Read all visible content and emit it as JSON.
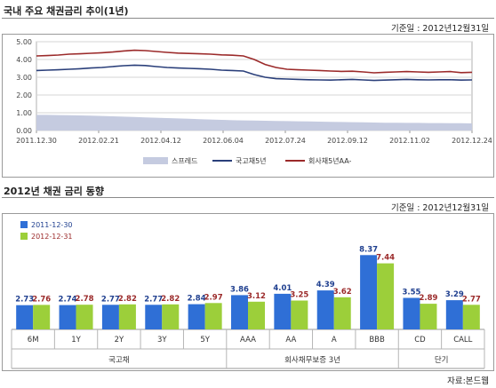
{
  "section1": {
    "title": "국내 주요 채권금리 추이(1년)",
    "as_of": "기준일 : 2012년12월31일"
  },
  "section2": {
    "title": "2012년 채권 금리 동향",
    "as_of": "기준일 : 2012년12월31일",
    "source": "자료:본드웹"
  },
  "chart_data": [
    {
      "type": "line",
      "title": "국내 주요 채권금리 추이(1년)",
      "x_tick_labels": [
        "2011.12.30",
        "2012.02.21",
        "2012.04.12",
        "2012.06.04",
        "2012.07.24",
        "2012.09.12",
        "2012.11.02",
        "2012.12.24"
      ],
      "y_tick_labels": [
        "0.00",
        "1.00",
        "2.00",
        "3.00",
        "4.00",
        "5.00"
      ],
      "ylim": [
        0,
        5
      ],
      "grid": true,
      "legend_position": "bottom",
      "series": [
        {
          "name": "스프레드",
          "kind": "area",
          "color": "#c5cbe0",
          "values": [
            0.88,
            0.88,
            0.87,
            0.86,
            0.85,
            0.84,
            0.82,
            0.8,
            0.78,
            0.76,
            0.74,
            0.72,
            0.7,
            0.68,
            0.66,
            0.64,
            0.62,
            0.6,
            0.58,
            0.57,
            0.56,
            0.55,
            0.54,
            0.53,
            0.52,
            0.51,
            0.5,
            0.49,
            0.48,
            0.47,
            0.46,
            0.45,
            0.44,
            0.44,
            0.43,
            0.43,
            0.42,
            0.42,
            0.41,
            0.41,
            0.4
          ]
        },
        {
          "name": "국고채5년",
          "kind": "line",
          "color": "#2a3f7a",
          "values": [
            3.38,
            3.4,
            3.42,
            3.45,
            3.48,
            3.52,
            3.55,
            3.6,
            3.65,
            3.68,
            3.66,
            3.6,
            3.55,
            3.52,
            3.5,
            3.48,
            3.45,
            3.4,
            3.38,
            3.35,
            3.15,
            3.0,
            2.92,
            2.9,
            2.88,
            2.86,
            2.85,
            2.84,
            2.86,
            2.88,
            2.85,
            2.82,
            2.84,
            2.86,
            2.88,
            2.86,
            2.85,
            2.86,
            2.86,
            2.84,
            2.85
          ]
        },
        {
          "name": "회사채5년AA-",
          "kind": "line",
          "color": "#9b2a2a",
          "values": [
            4.2,
            4.22,
            4.25,
            4.3,
            4.32,
            4.35,
            4.38,
            4.42,
            4.48,
            4.52,
            4.5,
            4.45,
            4.4,
            4.36,
            4.34,
            4.32,
            4.3,
            4.26,
            4.24,
            4.2,
            4.0,
            3.72,
            3.55,
            3.45,
            3.42,
            3.4,
            3.38,
            3.35,
            3.33,
            3.34,
            3.3,
            3.25,
            3.28,
            3.3,
            3.32,
            3.3,
            3.28,
            3.3,
            3.32,
            3.26,
            3.28
          ]
        }
      ]
    },
    {
      "type": "bar",
      "title": "2012년 채권 금리 동향",
      "categories": [
        "6M",
        "1Y",
        "2Y",
        "3Y",
        "5Y",
        "AAA",
        "AA",
        "A",
        "BBB",
        "CD",
        "CALL"
      ],
      "groups": [
        {
          "label": "국고채",
          "categories": [
            "6M",
            "1Y",
            "2Y",
            "3Y",
            "5Y"
          ]
        },
        {
          "label": "회사채무보증 3년",
          "categories": [
            "AAA",
            "AA",
            "A",
            "BBB"
          ]
        },
        {
          "label": "단기",
          "categories": [
            "CD",
            "CALL"
          ]
        }
      ],
      "legend_position": "top-left",
      "series": [
        {
          "name": "2011-12-30",
          "color": "#2f6fd6",
          "label_color": "#1f3f8f",
          "values": [
            2.73,
            2.74,
            2.77,
            2.77,
            2.84,
            3.86,
            4.01,
            4.39,
            8.37,
            3.55,
            3.29
          ],
          "value_labels": [
            "2.73",
            "2.74",
            "2.77",
            "2.77",
            "2.84",
            "3.86",
            "4.01",
            "4.39",
            "8.37",
            "3.55",
            "3.29"
          ]
        },
        {
          "name": "2012-12-31",
          "color": "#9ccf3a",
          "label_color": "#9b2a2a",
          "values": [
            2.76,
            2.78,
            2.82,
            2.82,
            2.97,
            3.12,
            3.25,
            3.62,
            7.44,
            2.89,
            2.77
          ],
          "value_labels": [
            "2.76",
            "2.78",
            "2.82",
            "2.82",
            "2.97",
            "3.12",
            "3.25",
            "3.62",
            "7.44",
            "2.89",
            "2.77"
          ]
        }
      ]
    }
  ]
}
